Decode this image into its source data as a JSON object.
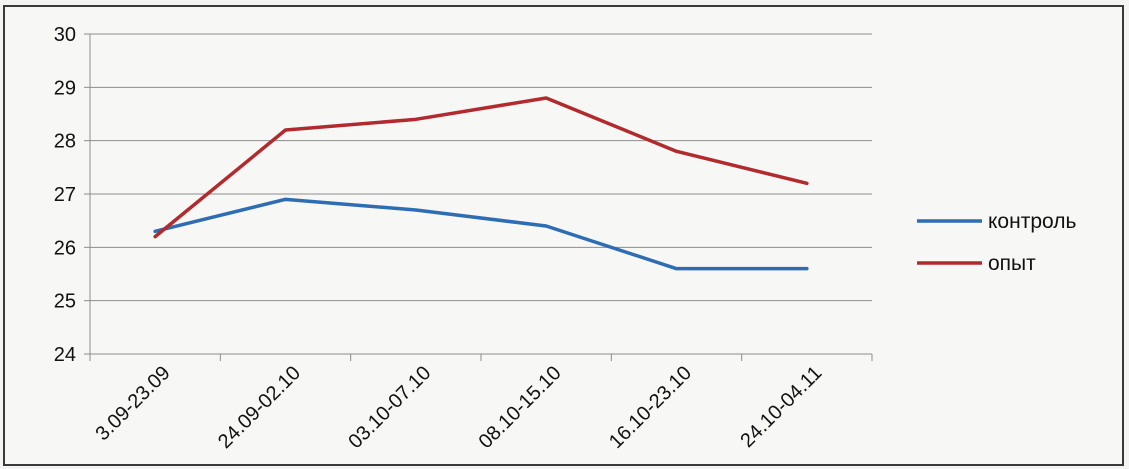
{
  "chart_data": {
    "type": "line",
    "categories": [
      "3.09-23.09",
      "24.09-02.10",
      "03.10-07.10",
      "08.10-15.10",
      "16.10-23.10",
      "24.10-04.11"
    ],
    "series": [
      {
        "name": "контроль",
        "color": "#2e6db4",
        "values": [
          26.3,
          26.9,
          26.7,
          26.4,
          25.6,
          25.6
        ]
      },
      {
        "name": "опыт",
        "color": "#b22a2e",
        "values": [
          26.2,
          28.2,
          28.4,
          28.8,
          27.8,
          27.2
        ]
      }
    ],
    "ylim": [
      24,
      30
    ],
    "yticks": [
      24,
      25,
      26,
      27,
      28,
      29,
      30
    ],
    "grid": true,
    "legend": "right"
  }
}
